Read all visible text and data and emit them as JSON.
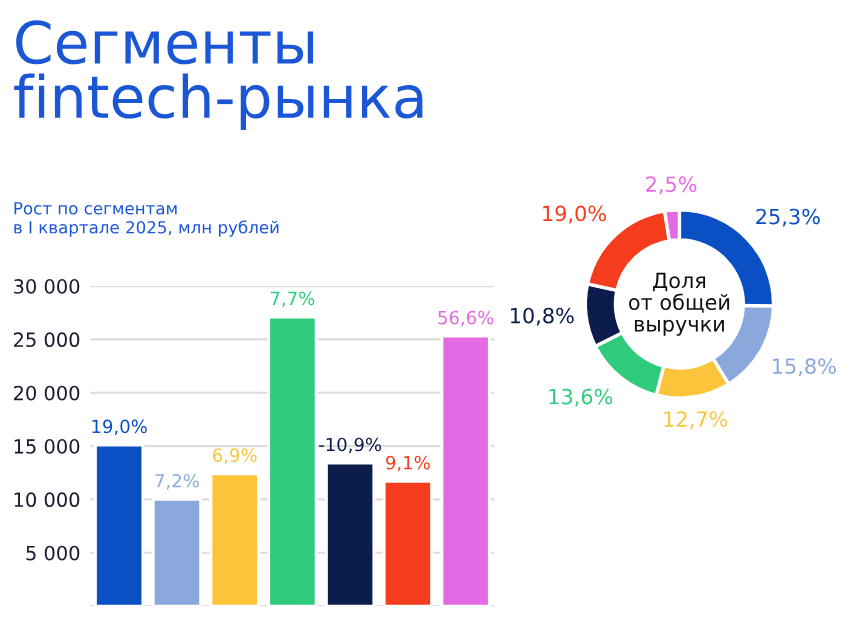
{
  "chart_data": [
    {
      "type": "bar",
      "title": "Сегменты\nfintech-рынка",
      "subtitle": "Рост по сегментам\nв I квартале 2025, млн рублей",
      "categories": [
        null,
        null,
        null,
        null,
        null,
        null,
        null
      ],
      "values": [
        15100,
        10000,
        12400,
        27100,
        13400,
        11700,
        25300
      ],
      "colors": [
        "#0a4fc4",
        "#8aa8dc",
        "#fcc43a",
        "#2ecb7c",
        "#0c1c4c",
        "#f53c1c",
        "#e46ae4"
      ],
      "annotations": [
        {
          "text": "19,0%",
          "y": 15100
        },
        {
          "text": "7,2%",
          "y": 10000
        },
        {
          "text": "6,9%",
          "y": 12400
        },
        {
          "text": "7,7%",
          "y": 27100
        },
        {
          "text": "-10,9%",
          "y": 13400
        },
        {
          "text": "9,1%",
          "y": 11700
        },
        {
          "text": "56,6%",
          "y": 25300
        }
      ],
      "ylim": [
        0,
        30000
      ],
      "yticks": [
        {
          "value": 0,
          "label": null
        },
        {
          "value": 5000,
          "label": "5 000"
        },
        {
          "value": 10000,
          "label": "10 000"
        },
        {
          "value": 15000,
          "label": "15 000"
        },
        {
          "value": 20000,
          "label": "20 000"
        },
        {
          "value": 25000,
          "label": "25 000"
        },
        {
          "value": 30000,
          "label": "30 000"
        }
      ],
      "grid": "y"
    },
    {
      "type": "donut",
      "categories": [
        null,
        null,
        null,
        null,
        null,
        null,
        null
      ],
      "values": [
        25.3,
        15.8,
        12.7,
        13.6,
        10.8,
        19.0,
        2.5
      ],
      "colors": [
        "#0a4fc4",
        "#8aa8dc",
        "#fcc43a",
        "#2ecb7c",
        "#0c1c4c",
        "#f53c1c",
        "#e46ae4"
      ],
      "value_labels": [
        "25,3%",
        "15,8%",
        "12,7%",
        "13,6%",
        "10,8%",
        "19,0%",
        "2,5%"
      ],
      "annotations": [
        "Доля\nот общей\nвыручки"
      ]
    }
  ]
}
